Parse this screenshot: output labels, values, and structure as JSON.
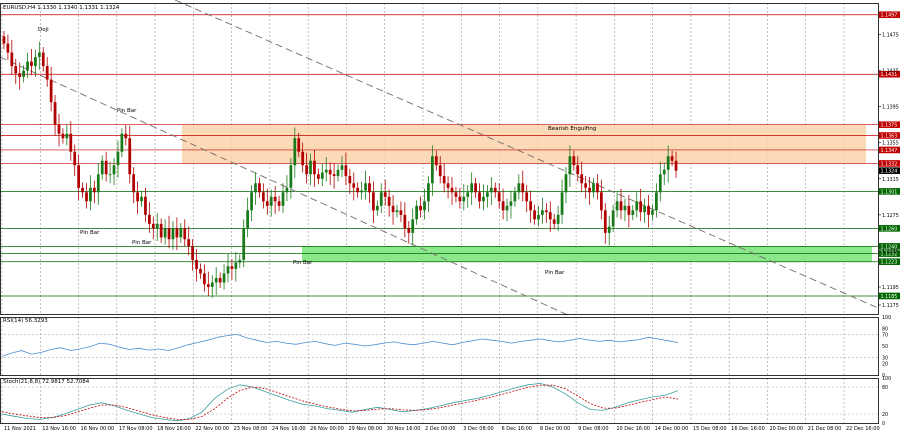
{
  "chart_data": [
    {
      "type": "candlestick",
      "title": "EURUSD,H4  1.1330 1.1340 1.1331 1.1324",
      "x_tick_labels": [
        "11 Nov 2021",
        "12 Nov 16:00",
        "16 Nov 00:00",
        "17 Nov 08:00",
        "18 Nov 16:00",
        "22 Nov 00:00",
        "23 Nov 08:00",
        "24 Nov 16:00",
        "26 Nov 00:00",
        "29 Nov 08:00",
        "30 Nov 16:00",
        "2 Dec 00:00",
        "3 Dec 08:00",
        "6 Dec 16:00",
        "8 Dec 00:00",
        "9 Dec 08:00",
        "10 Dec 16:00",
        "14 Dec 00:00",
        "15 Dec 08:00",
        "16 Dec 16:00",
        "20 Dec 00:00",
        "21 Dec 08:00",
        "22 Dec 16:00"
      ],
      "y_tick_labels": [
        "1.1475",
        "1.1435",
        "1.1395",
        "1.1355",
        "1.1315",
        "1.1275",
        "1.1235",
        "1.1195",
        "1.1175"
      ],
      "ylim": [
        1.1165,
        1.151
      ],
      "close_series": [
        1.1465,
        1.1455,
        1.144,
        1.1432,
        1.1428,
        1.1435,
        1.1445,
        1.144,
        1.145,
        1.1455,
        1.144,
        1.1425,
        1.14,
        1.1375,
        1.1365,
        1.136,
        1.1365,
        1.1345,
        1.133,
        1.1305,
        1.13,
        1.129,
        1.1305,
        1.13,
        1.132,
        1.1335,
        1.132,
        1.132,
        1.133,
        1.1345,
        1.1365,
        1.136,
        1.132,
        1.13,
        1.129,
        1.1295,
        1.1275,
        1.1265,
        1.126,
        1.1265,
        1.125,
        1.126,
        1.1248,
        1.126,
        1.125,
        1.126,
        1.1248,
        1.124,
        1.1225,
        1.1215,
        1.121,
        1.1198,
        1.1195,
        1.12,
        1.1205,
        1.12,
        1.121,
        1.1218,
        1.1215,
        1.1222,
        1.1225,
        1.126,
        1.128,
        1.13,
        1.131,
        1.13,
        1.129,
        1.1285,
        1.1295,
        1.129,
        1.1285,
        1.13,
        1.1305,
        1.133,
        1.136,
        1.1345,
        1.133,
        1.132,
        1.1335,
        1.132,
        1.1315,
        1.1322,
        1.1325,
        1.132,
        1.1318,
        1.1325,
        1.133,
        1.1318,
        1.131,
        1.1305,
        1.13,
        1.1302,
        1.131,
        1.13,
        1.128,
        1.1285,
        1.13,
        1.1295,
        1.1285,
        1.1278,
        1.128,
        1.1275,
        1.126,
        1.1255,
        1.127,
        1.1285,
        1.128,
        1.129,
        1.131,
        1.134,
        1.133,
        1.1318,
        1.131,
        1.1305,
        1.13,
        1.1295,
        1.129,
        1.1295,
        1.13,
        1.131,
        1.13,
        1.129,
        1.1295,
        1.13,
        1.1305,
        1.13,
        1.129,
        1.128,
        1.1285,
        1.129,
        1.13,
        1.131,
        1.13,
        1.129,
        1.128,
        1.127,
        1.1275,
        1.128,
        1.1278,
        1.127,
        1.1265,
        1.1275,
        1.13,
        1.132,
        1.134,
        1.133,
        1.132,
        1.131,
        1.1305,
        1.13,
        1.131,
        1.13,
        1.128,
        1.1255,
        1.1262,
        1.128,
        1.129,
        1.128,
        1.1285,
        1.1275,
        1.128,
        1.129,
        1.1278,
        1.1285,
        1.1275,
        1.128,
        1.13,
        1.132,
        1.1325,
        1.134,
        1.1335,
        1.1324
      ],
      "horizontal_levels": [
        {
          "price_label": "1.1497",
          "color": "#c00000"
        },
        {
          "price_label": "1.1431",
          "color": "#c00000"
        },
        {
          "price_label": "1.1375",
          "color": "#c00000"
        },
        {
          "price_label": "1.1363",
          "color": "#c00000"
        },
        {
          "price_label": "1.1347",
          "color": "#c00000"
        },
        {
          "price_label": "1.1332",
          "color": "#c00000"
        },
        {
          "price_label": "1.1324",
          "color": "#000000"
        },
        {
          "price_label": "1.1301",
          "color": "#006600"
        },
        {
          "price_label": "1.1260",
          "color": "#006600"
        },
        {
          "price_label": "1.1240",
          "color": "#006600"
        },
        {
          "price_label": "1.1232",
          "color": "#006600"
        },
        {
          "price_label": "1.1223",
          "color": "#006600"
        },
        {
          "price_label": "1.1185",
          "color": "#006600"
        }
      ],
      "zones": [
        {
          "type": "resistance",
          "color": "#fbd3ab"
        },
        {
          "type": "support",
          "color": "#7de47d"
        }
      ],
      "annotations": [
        "Doji",
        "Pin Bar",
        "Pin Bar",
        "Pin Bar",
        "Pin Bar",
        "Bearish Engulfing",
        "Pin Bar"
      ],
      "trendlines": 2
    },
    {
      "type": "line",
      "title": "RSI(14) 56.3293",
      "ylim": [
        0,
        100
      ],
      "y_tick_labels": [
        "100",
        "80",
        "70",
        "50",
        "30",
        "20",
        "0"
      ],
      "values": [
        32,
        38,
        42,
        36,
        39,
        44,
        47,
        42,
        45,
        49,
        55,
        53,
        48,
        44,
        46,
        43,
        45,
        42,
        47,
        52,
        56,
        60,
        65,
        68,
        70,
        64,
        60,
        56,
        58,
        55,
        53,
        56,
        58,
        54,
        51,
        55,
        53,
        50,
        52,
        55,
        57,
        54,
        52,
        55,
        58,
        55,
        52,
        56,
        59,
        62,
        60,
        58,
        55,
        58,
        60,
        62,
        59,
        57,
        60,
        63,
        60,
        58,
        60,
        57,
        59,
        61,
        65,
        62,
        59,
        56
      ]
    },
    {
      "type": "line",
      "title": "Stoch(21,8,8) 72.9817 52.7084",
      "ylim": [
        0,
        100
      ],
      "y_tick_labels": [
        "100",
        "80",
        "20",
        "0"
      ],
      "series": [
        {
          "values": [
            20,
            15,
            10,
            8,
            12,
            20,
            30,
            40,
            45,
            38,
            28,
            20,
            12,
            8,
            5,
            10,
            25,
            55,
            75,
            85,
            80,
            70,
            60,
            50,
            42,
            38,
            32,
            28,
            24,
            30,
            35,
            30,
            25,
            28,
            32,
            38,
            45,
            50,
            55,
            62,
            70,
            78,
            85,
            88,
            80,
            65,
            45,
            30,
            28,
            35,
            45,
            52,
            58,
            62,
            72
          ],
          "color": "#3aa0a0",
          "style": "solid"
        },
        {
          "values": [
            25,
            20,
            16,
            12,
            12,
            16,
            24,
            33,
            40,
            40,
            34,
            26,
            18,
            12,
            8,
            8,
            15,
            32,
            55,
            72,
            80,
            77,
            68,
            58,
            49,
            42,
            36,
            31,
            27,
            28,
            31,
            32,
            29,
            28,
            30,
            34,
            40,
            45,
            51,
            57,
            64,
            72,
            79,
            84,
            84,
            76,
            60,
            43,
            33,
            33,
            39,
            46,
            52,
            58,
            53
          ],
          "color": "#c00000",
          "style": "dashed"
        }
      ]
    }
  ]
}
